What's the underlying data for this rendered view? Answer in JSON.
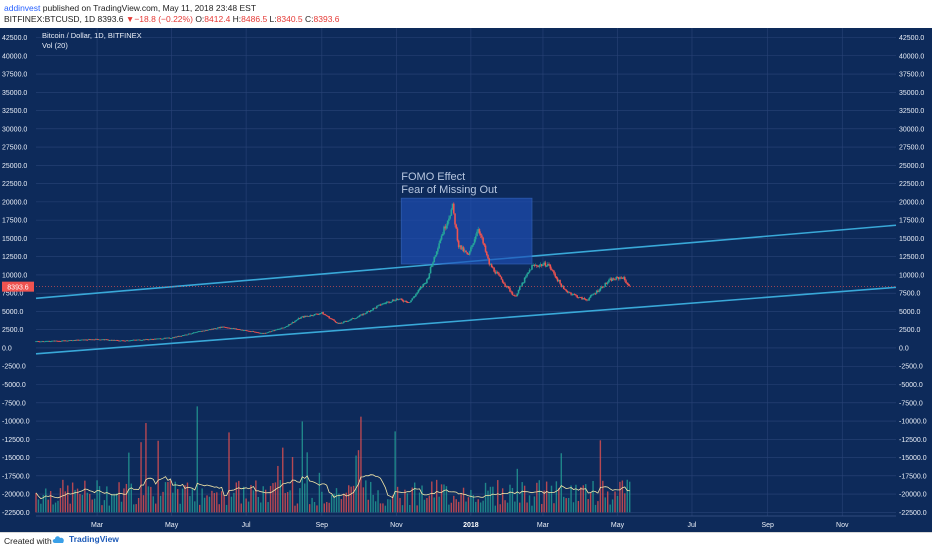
{
  "header": {
    "username": "addinvest",
    "published_text": " published on TradingView.com, May 11, 2018 23:48 EST",
    "symbol": "BITFINEX:BTCUSD, 1D",
    "last": "8393.6",
    "arrow": "▼",
    "change": "−18.8 (−0.22%)",
    "o_label": "O:",
    "o_val": "8412.4",
    "h_label": "H:",
    "h_val": "8486.5",
    "l_label": "L:",
    "l_val": "8340.5",
    "c_label": "C:",
    "c_val": "8393.6"
  },
  "footer": {
    "created_with": "Created with",
    "brand": "TradingView"
  },
  "colors": {
    "background": "#0d2a5a",
    "grid": "#2a4478",
    "up": "#26a69a",
    "down": "#ef5350",
    "channel": "#39a8d8",
    "fomo_box": "#1e4fb8",
    "price_tag": "#ef5350"
  },
  "chart_data": {
    "type": "candlestick",
    "title": "Bitcoin / Dollar, 1D, BITFINEX",
    "indicator": "Vol (20)",
    "price_marker": "8393.6",
    "y_ticks": [
      42500,
      40000,
      37500,
      35000,
      32500,
      30000,
      27500,
      25000,
      22500,
      20000,
      17500,
      15000,
      12500,
      10000,
      7500,
      5000,
      2500,
      0,
      -2500,
      -5000,
      -7500,
      -10000,
      -12500,
      -15000,
      -17500,
      -20000,
      -22500
    ],
    "y_tick_labels": [
      "42500.0",
      "40000.0",
      "37500.0",
      "35000.0",
      "32500.0",
      "30000.0",
      "27500.0",
      "25000.0",
      "22500.0",
      "20000.0",
      "17500.0",
      "15000.0",
      "12500.0",
      "10000.0",
      "7500.0",
      "5000.0",
      "2500.0",
      "0.0",
      "-2500.0",
      "-5000.0",
      "-7500.0",
      "-10000.0",
      "-12500.0",
      "-15000.0",
      "-17500.0",
      "-20000.0",
      "-22500.0"
    ],
    "ylim": [
      -23000,
      43800
    ],
    "x_ticks": [
      {
        "label": "Mar",
        "x": "2017-03-01",
        "bold": false
      },
      {
        "label": "May",
        "x": "2017-05-01",
        "bold": false
      },
      {
        "label": "Jul",
        "x": "2017-07-01",
        "bold": false
      },
      {
        "label": "Sep",
        "x": "2017-09-01",
        "bold": false
      },
      {
        "label": "Nov",
        "x": "2017-11-01",
        "bold": false
      },
      {
        "label": "2018",
        "x": "2018-01-01",
        "bold": true
      },
      {
        "label": "Mar",
        "x": "2018-03-01",
        "bold": false
      },
      {
        "label": "May",
        "x": "2018-05-01",
        "bold": false
      },
      {
        "label": "Jul",
        "x": "2018-07-01",
        "bold": false
      },
      {
        "label": "Sep",
        "x": "2018-09-01",
        "bold": false
      },
      {
        "label": "Nov",
        "x": "2018-11-01",
        "bold": false
      }
    ],
    "xlim": [
      "2017-01-10",
      "2018-12-15"
    ],
    "price_path": [
      [
        "2017-01-10",
        900
      ],
      [
        "2017-02-01",
        980
      ],
      [
        "2017-03-01",
        1200
      ],
      [
        "2017-03-20",
        1000
      ],
      [
        "2017-04-15",
        1200
      ],
      [
        "2017-05-01",
        1400
      ],
      [
        "2017-05-25",
        2300
      ],
      [
        "2017-06-12",
        2900
      ],
      [
        "2017-07-15",
        2000
      ],
      [
        "2017-08-01",
        2800
      ],
      [
        "2017-08-15",
        4200
      ],
      [
        "2017-09-01",
        4800
      ],
      [
        "2017-09-15",
        3300
      ],
      [
        "2017-10-01",
        4300
      ],
      [
        "2017-10-20",
        6000
      ],
      [
        "2017-11-01",
        6700
      ],
      [
        "2017-11-12",
        6300
      ],
      [
        "2017-11-26",
        9300
      ],
      [
        "2017-12-07",
        15000
      ],
      [
        "2017-12-17",
        19300
      ],
      [
        "2017-12-22",
        14000
      ],
      [
        "2017-12-30",
        12600
      ],
      [
        "2018-01-07",
        16500
      ],
      [
        "2018-01-16",
        11500
      ],
      [
        "2018-02-06",
        7000
      ],
      [
        "2018-02-20",
        11200
      ],
      [
        "2018-03-05",
        11500
      ],
      [
        "2018-03-18",
        8000
      ],
      [
        "2018-04-01",
        6800
      ],
      [
        "2018-04-06",
        6600
      ],
      [
        "2018-04-25",
        9300
      ],
      [
        "2018-05-05",
        9700
      ],
      [
        "2018-05-11",
        8393.6
      ]
    ],
    "channel_lines": [
      {
        "from": [
          "2017-01-10",
          6800
        ],
        "to": [
          "2018-12-15",
          16800
        ]
      },
      {
        "from": [
          "2017-01-10",
          -800
        ],
        "to": [
          "2018-12-15",
          8300
        ]
      }
    ],
    "annotation": {
      "title": "FOMO Effect",
      "subtitle": "Fear of Missing Out",
      "x_range": [
        "2017-11-05",
        "2018-02-20"
      ],
      "y_range": [
        11500,
        20500
      ]
    },
    "volume": {
      "baseline": -22500,
      "typical_height": 3000,
      "max_height": 13000,
      "start": "2017-01-10",
      "end": "2018-05-11"
    }
  }
}
